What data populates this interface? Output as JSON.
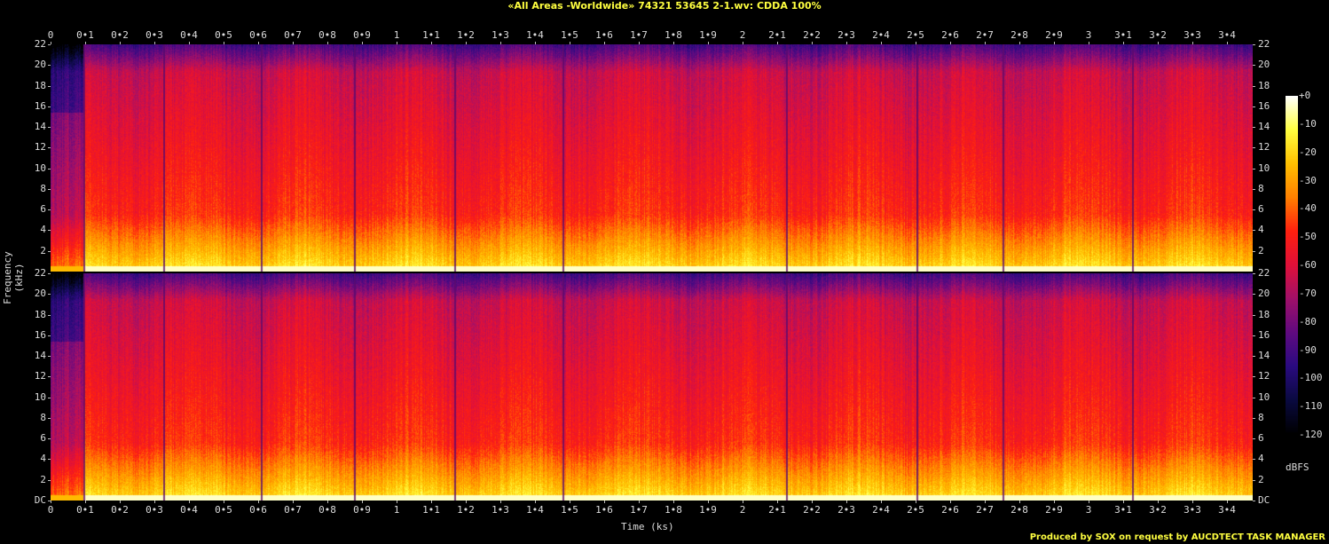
{
  "title": "«All Areas -Worldwide» 74321 53645 2-1.wv: CDDA 100%",
  "credit": "Produced by SOX on request by AUCDTECT TASK MANAGER",
  "chart_data": {
    "type": "heatmap",
    "subtype": "spectrogram",
    "channels": 2,
    "xlabel": "Time (ks)",
    "ylabel": "Frequency (kHz)",
    "xlim": [
      0,
      3.47
    ],
    "ylim": [
      0,
      22
    ],
    "x_ticks": [
      "0",
      "0•1",
      "0•2",
      "0•3",
      "0•4",
      "0•5",
      "0•6",
      "0•7",
      "0•8",
      "0•9",
      "1",
      "1•1",
      "1•2",
      "1•3",
      "1•4",
      "1•5",
      "1•6",
      "1•7",
      "1•8",
      "1•9",
      "2",
      "2•1",
      "2•2",
      "2•3",
      "2•4",
      "2•5",
      "2•6",
      "2•7",
      "2•8",
      "2•9",
      "3",
      "3•1",
      "3•2",
      "3•3",
      "3•4"
    ],
    "y_ticks": [
      "DC",
      "2",
      "4",
      "6",
      "8",
      "10",
      "12",
      "14",
      "16",
      "18",
      "20",
      "22"
    ],
    "colorbar": {
      "label": "dBFS",
      "ticks": [
        "+0",
        "-10",
        "-20",
        "-30",
        "-40",
        "-50",
        "-60",
        "-70",
        "-80",
        "-90",
        "-100",
        "-110",
        "-120"
      ],
      "range": [
        -120,
        0
      ]
    },
    "colormap": [
      "#000000",
      "#0a0a40",
      "#2a0a80",
      "#600a80",
      "#a0106a",
      "#e0103a",
      "#ff2010",
      "#ff8000",
      "#ffc000",
      "#ffff40",
      "#ffffff"
    ],
    "track_boundaries_ks": [
      0.095,
      0.326,
      0.608,
      0.877,
      1.167,
      1.479,
      2.126,
      2.503,
      2.751,
      3.126
    ]
  }
}
